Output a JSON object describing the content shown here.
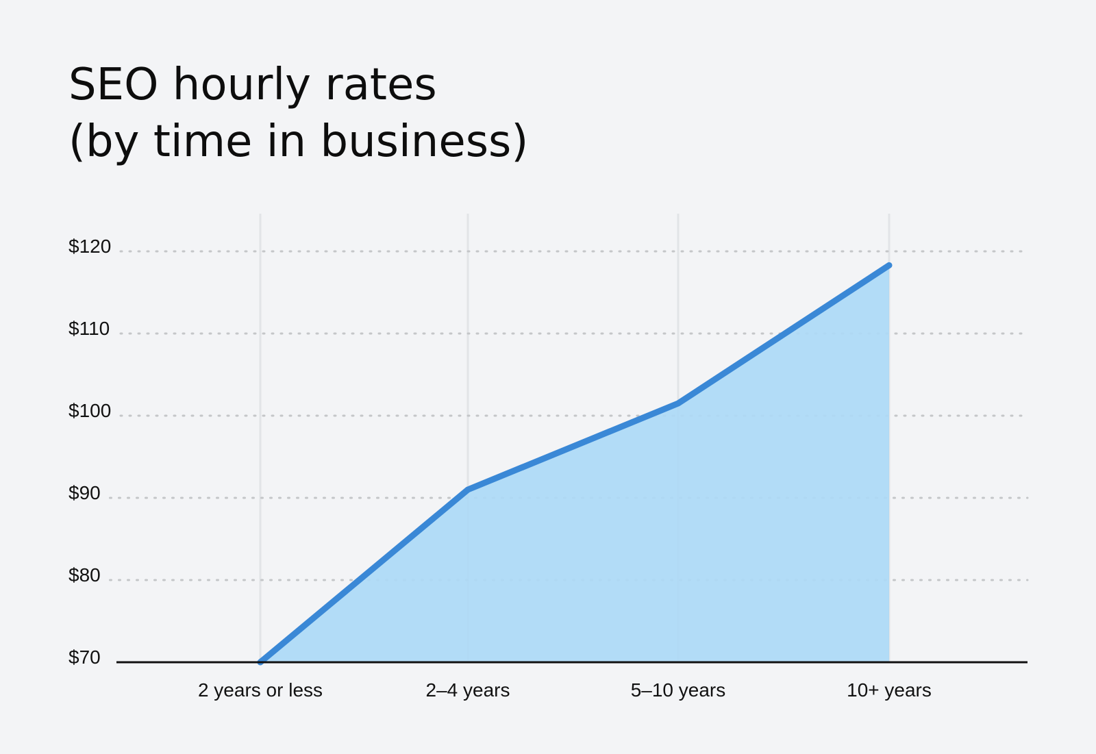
{
  "chart_data": {
    "type": "area",
    "title_lines": [
      "SEO hourly rates",
      "(by time in business)"
    ],
    "categories": [
      "2 years or less",
      "2–4 years",
      "5–10 years",
      "10+ years"
    ],
    "values": [
      70,
      91,
      101.5,
      118.3
    ],
    "y_tick_values": [
      70,
      80,
      90,
      100,
      110,
      120
    ],
    "y_tick_labels": [
      "$70",
      "$80",
      "$90",
      "$100",
      "$110",
      "$120"
    ],
    "ylim": [
      70,
      120
    ],
    "grid": {
      "horizontal": "dotted",
      "vertical": "solid"
    },
    "colors": {
      "line": "#3a88d6",
      "fill": "#acd9f6",
      "gridline": "#c4c6c8",
      "vertical_gridline": "#e2e4e7",
      "axis": "#111111",
      "background": "#f3f4f6"
    }
  }
}
